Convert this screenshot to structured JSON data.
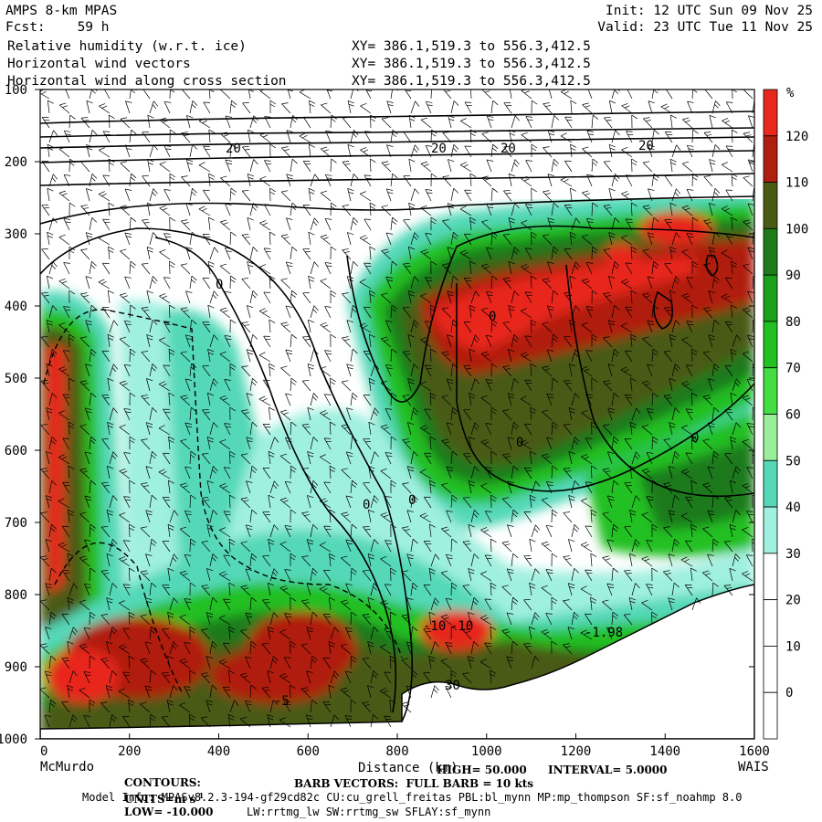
{
  "header": {
    "model": "AMPS 8-km MPAS",
    "fcst": "Fcst:    59 h",
    "init": "Init: 12 UTC Sun 09 Nov 25",
    "valid": "Valid: 23 UTC Tue 11 Nov 25",
    "field1": "Relative humidity (w.r.t. ice)",
    "field2": "Horizontal wind vectors",
    "field3": "Horizontal wind along cross section",
    "xy": "XY= 386.1,519.3 to 556.3,412.5"
  },
  "footer": {
    "contours_label": "CONTOURS:",
    "contours_detail": "UNITS=m s",
    "contours_units_sup": "-1",
    "low": "LOW= -10.000",
    "high": "HIGH= 50.000",
    "interval": "INTERVAL= 5.0000",
    "barb": "BARB VECTORS:  FULL BARB = 10 kts",
    "model_info": "Model Info: MPASv8.2.3-194-gf29cd82c CU:cu_grell_freitas PBL:bl_mynn MP:mp_thompson SF:sf_noahmp 8.0",
    "model_info2": "LW:rrtmg_lw SW:rrtmg_sw SFLAY:sf_mynn"
  },
  "axes": {
    "x_title": "Distance (km)",
    "left_station": "McMurdo",
    "right_station": "WAIS"
  },
  "colorbar": {
    "unit": "%",
    "labels": [
      "120",
      "110",
      "100",
      "90",
      "80",
      "70",
      "60",
      "50",
      "40",
      "30",
      "20",
      "10",
      "0"
    ],
    "colors": [
      "#e8281c",
      "#b01e10",
      "#4a5a12",
      "#1f7a1a",
      "#1aa01a",
      "#22c022",
      "#44dd44",
      "#99ee99",
      "#55d8b8",
      "#a0f0e0",
      "#ffffff",
      "#ffffff",
      "#ffffff",
      "#ffffff"
    ]
  },
  "contour_labels": [
    "20",
    "20",
    "20",
    "20",
    "0",
    "0",
    "0",
    "0",
    "0",
    "0",
    "-10",
    "-10",
    "-5",
    "30",
    "-1.98"
  ],
  "chart_data": {
    "type": "heatmap",
    "title": "Relative humidity (w.r.t. ice)",
    "xlabel": "Distance (km)",
    "ylabel": "",
    "xlim": [
      0,
      1600
    ],
    "ylim": [
      1000,
      100
    ],
    "x_ticks": [
      0,
      200,
      400,
      600,
      800,
      1000,
      1200,
      1400,
      1600
    ],
    "y_ticks": [
      100,
      200,
      300,
      400,
      500,
      600,
      700,
      800,
      900,
      1000
    ],
    "color_levels": [
      0,
      10,
      20,
      30,
      40,
      50,
      60,
      70,
      80,
      90,
      100,
      110,
      120
    ],
    "series": [
      {
        "name": "Relative humidity (w.r.t. ice)",
        "regions": [
          {
            "x": [
              870,
              1600
            ],
            "p": [
              250,
              560
            ],
            "rh": 110
          },
          {
            "x": [
              0,
              120
            ],
            "p": [
              400,
              750
            ],
            "rh": 100
          },
          {
            "x": [
              0,
              820
            ],
            "p": [
              800,
              1000
            ],
            "rh": 110
          },
          {
            "x": [
              800,
              1050
            ],
            "p": [
              850,
              950
            ],
            "rh": 115
          },
          {
            "x": [
              0,
              1600
            ],
            "p": [
              100,
              250
            ],
            "rh": 10
          }
        ]
      },
      {
        "name": "Horizontal wind along cross section",
        "contour_values": [
          20,
          20,
          20,
          20,
          0,
          0,
          0,
          0,
          0,
          0,
          -10,
          -10,
          -5,
          30,
          -1.98
        ]
      }
    ],
    "stations": {
      "left": "McMurdo",
      "right": "WAIS"
    }
  }
}
